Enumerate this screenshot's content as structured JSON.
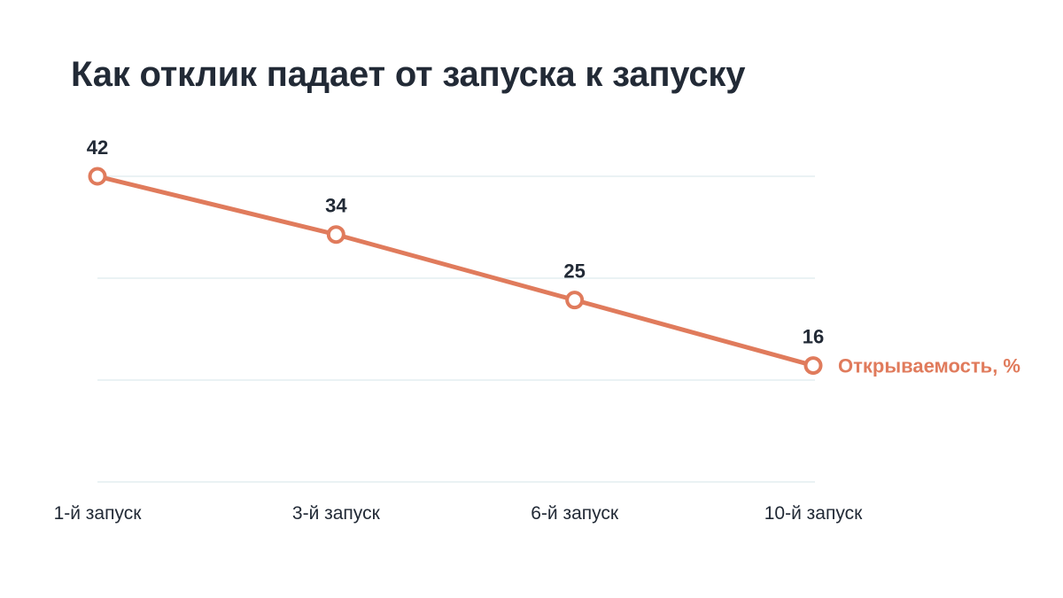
{
  "chart_data": {
    "type": "line",
    "title": "Как отклик падает от запуска к запуску",
    "categories": [
      "1-й запуск",
      "3-й запуск",
      "6-й запуск",
      "10-й запуск"
    ],
    "series": [
      {
        "name": "Открываемость, %",
        "values": [
          42,
          34,
          25,
          16
        ],
        "color": "#e07b5c"
      }
    ],
    "ylim": [
      0,
      42
    ],
    "grid": true,
    "legend": "end-of-line"
  }
}
